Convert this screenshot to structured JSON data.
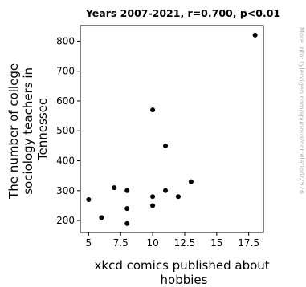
{
  "chart_data": {
    "type": "scatter",
    "title": "Years 2007-2021, r=0.700, p<0.01",
    "xlabel_lines": [
      "xkcd comics published about",
      "hobbies"
    ],
    "ylabel_lines": [
      "The number of college",
      "sociology teachers in",
      "Tennessee"
    ],
    "watermark": "More info: tylervigen.com/spurious/correlation/2576",
    "xlim": [
      4.35,
      18.65
    ],
    "ylim": [
      160,
      852
    ],
    "x_ticks": [
      5,
      7.5,
      10,
      12.5,
      15,
      17.5
    ],
    "x_tick_labels": [
      "5",
      "7.5",
      "10",
      "12.5",
      "15",
      "17.5"
    ],
    "y_ticks": [
      200,
      300,
      400,
      500,
      600,
      700,
      800
    ],
    "y_tick_labels": [
      "200",
      "300",
      "400",
      "500",
      "600",
      "700",
      "800"
    ],
    "grid": false,
    "point_color": "#000000",
    "points": [
      {
        "x": 5,
        "y": 270
      },
      {
        "x": 6,
        "y": 210
      },
      {
        "x": 7,
        "y": 310
      },
      {
        "x": 8,
        "y": 300
      },
      {
        "x": 8,
        "y": 240
      },
      {
        "x": 8,
        "y": 190
      },
      {
        "x": 10,
        "y": 570
      },
      {
        "x": 10,
        "y": 280
      },
      {
        "x": 10,
        "y": 250
      },
      {
        "x": 11,
        "y": 450
      },
      {
        "x": 11,
        "y": 300
      },
      {
        "x": 12,
        "y": 280
      },
      {
        "x": 13,
        "y": 330
      },
      {
        "x": 18,
        "y": 820
      }
    ]
  }
}
